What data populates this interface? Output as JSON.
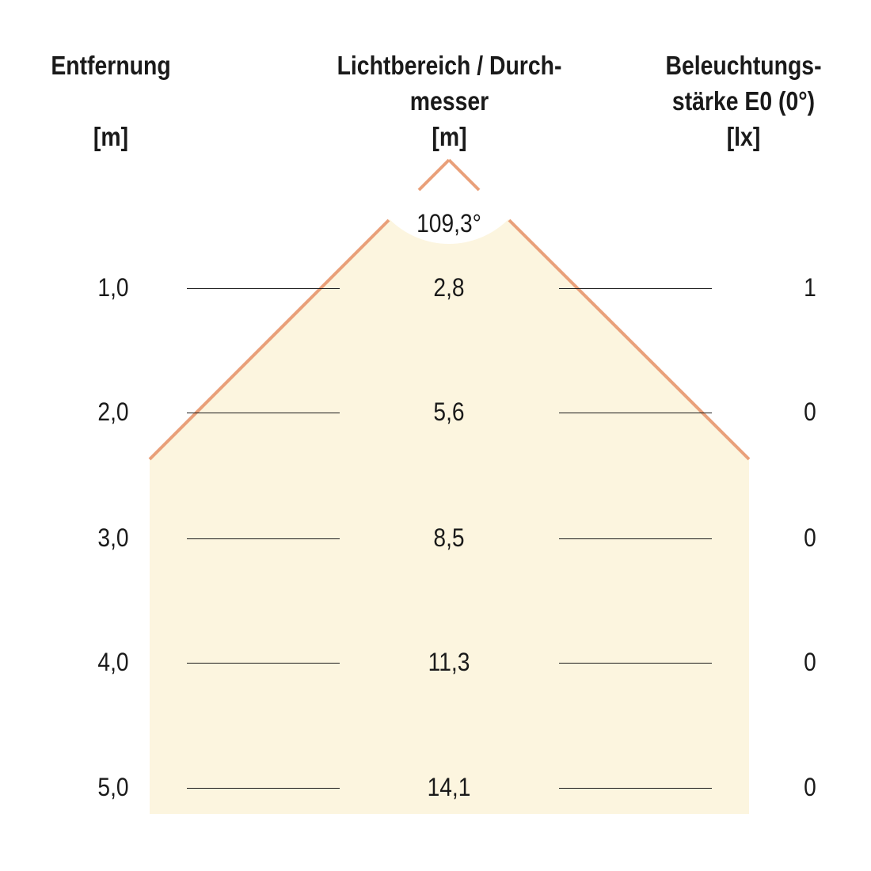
{
  "headers": {
    "distance": [
      "Entfernung",
      "",
      "[m]"
    ],
    "beam": [
      "Lichtbereich / Durch-",
      "messer",
      "[m]"
    ],
    "lux": [
      "Beleuchtungs-",
      "stärke E0 (0°)",
      "[lx]"
    ]
  },
  "beam_angle": "109,3°",
  "rows": [
    {
      "distance": "1,0",
      "diameter": "2,8",
      "lux": "1"
    },
    {
      "distance": "2,0",
      "diameter": "5,6",
      "lux": "0"
    },
    {
      "distance": "3,0",
      "diameter": "8,5",
      "lux": "0"
    },
    {
      "distance": "4,0",
      "diameter": "11,3",
      "lux": "0"
    },
    {
      "distance": "5,0",
      "diameter": "14,1",
      "lux": "0"
    }
  ],
  "colors": {
    "cone_fill": "#fcf5df",
    "cone_edge": "#e9a07a",
    "text": "#1a1a1a"
  }
}
